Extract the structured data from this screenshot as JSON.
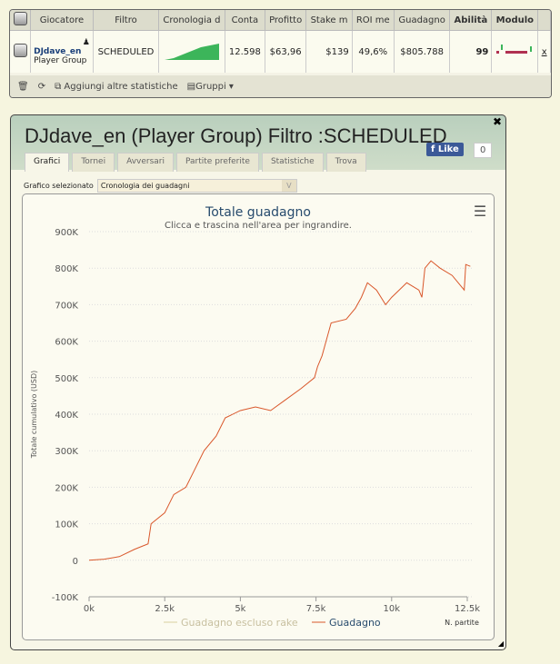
{
  "table": {
    "headers": [
      "Giocatore",
      "Filtro",
      "Cronologia d",
      "Conta",
      "Profitto",
      "Stake m",
      "ROI me",
      "Guadagno",
      "Abilità",
      "Modulo"
    ],
    "row": {
      "player": "DJdave_en",
      "group": "Player Group",
      "filter": "SCHEDULED",
      "count": "12.598",
      "profit": "$63,96",
      "stake": "$139",
      "roi": "49,6%",
      "earnings": "$805.788",
      "ability": "99",
      "remove": "x"
    },
    "footer": {
      "add_stats": "Aggiungi altre statistiche",
      "groups": "Gruppi"
    }
  },
  "window": {
    "title": "DJdave_en (Player Group) Filtro :SCHEDULED",
    "close": "✖",
    "like": "Like",
    "like_count": "0",
    "tabs": [
      "Grafici",
      "Tornei",
      "Avversari",
      "Partite preferite",
      "Statistiche",
      "Trova"
    ],
    "chart_select_label": "Grafico selezionato",
    "chart_select_value": "Cronologia dei guadagni"
  },
  "chart_data": {
    "type": "line",
    "title": "Totale guadagno",
    "subtitle": "Clicca e trascina nell'area per ingrandire.",
    "ylabel": "Totale cumulativo (USD)",
    "xlabel": "N. partite",
    "xlim": [
      0,
      12500
    ],
    "ylim": [
      -100000,
      900000
    ],
    "xticks": [
      "0k",
      "2.5k",
      "5k",
      "7.5k",
      "10k",
      "12.5k"
    ],
    "yticks": [
      "900K",
      "800K",
      "700K",
      "600K",
      "500K",
      "400K",
      "300K",
      "200K",
      "100K",
      "0",
      "-100K"
    ],
    "legend": [
      "Guadagno escluso rake",
      "Guadagno"
    ],
    "series": [
      {
        "name": "Guadagno",
        "color": "#d9572b",
        "x": [
          0,
          500,
          1000,
          1500,
          1950,
          2050,
          2500,
          2800,
          3200,
          3500,
          3800,
          4200,
          4500,
          5000,
          5500,
          6000,
          6500,
          7000,
          7450,
          7550,
          7700,
          8000,
          8500,
          8800,
          9000,
          9200,
          9500,
          9800,
          10000,
          10500,
          10900,
          11000,
          11100,
          11300,
          11600,
          12000,
          12300,
          12400,
          12450,
          12600
        ],
        "y": [
          0,
          3000,
          10000,
          30000,
          45000,
          100000,
          130000,
          180000,
          200000,
          250000,
          300000,
          340000,
          390000,
          410000,
          420000,
          410000,
          440000,
          470000,
          500000,
          530000,
          560000,
          650000,
          660000,
          690000,
          720000,
          760000,
          740000,
          700000,
          720000,
          760000,
          740000,
          720000,
          800000,
          820000,
          800000,
          780000,
          750000,
          740000,
          810000,
          805000
        ]
      }
    ]
  }
}
